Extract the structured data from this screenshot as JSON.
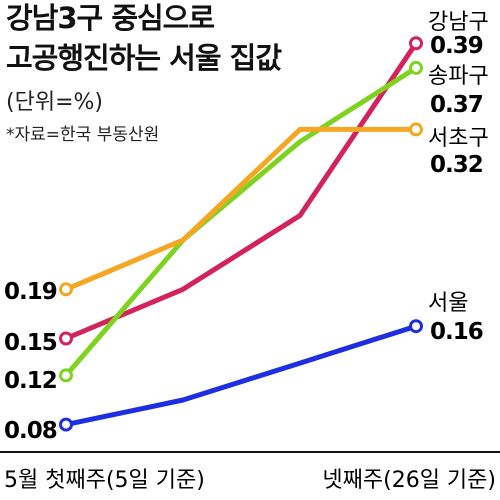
{
  "title_line1": "강남3구 중심으로",
  "title_line2": "고공행진하는 서울 집값",
  "unit": "(단위=%)",
  "source": "*자료=한국 부동산원",
  "chart_data": {
    "type": "line",
    "categories": [
      "5월 첫째주(5일 기준)",
      "",
      "",
      "넷째주(26일 기준)"
    ],
    "ylabel": "",
    "grid": false,
    "series": [
      {
        "name": "강남구",
        "color": "#d4225a",
        "values": [
          0.15,
          0.19,
          0.25,
          0.39
        ],
        "start_label": "0.15",
        "end_label": "0.39"
      },
      {
        "name": "송파구",
        "color": "#7ed321",
        "values": [
          0.12,
          0.23,
          0.31,
          0.37
        ],
        "start_label": "0.12",
        "end_label": "0.37"
      },
      {
        "name": "서초구",
        "color": "#f5a623",
        "values": [
          0.19,
          0.23,
          0.32,
          0.32
        ],
        "start_label": "0.19",
        "end_label": "0.32"
      },
      {
        "name": "서울",
        "color": "#1d2fe0",
        "values": [
          0.08,
          0.1,
          0.13,
          0.16
        ],
        "start_label": "0.08",
        "end_label": "0.16"
      }
    ]
  }
}
